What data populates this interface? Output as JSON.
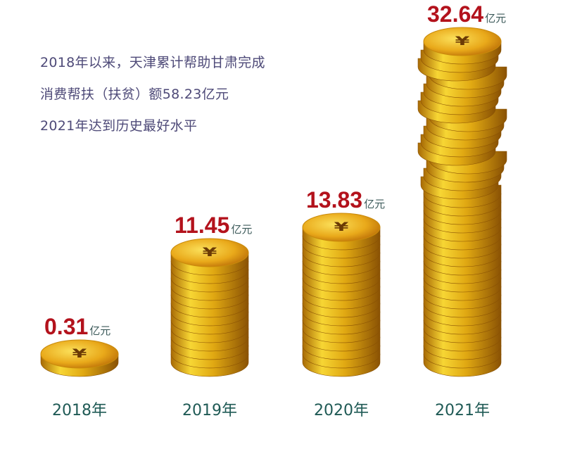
{
  "intro": [
    "2018年以来，天津累计帮助甘肃完成",
    "消费帮扶（扶贫）额58.23亿元",
    "2021年达到历史最好水平"
  ],
  "chart_data": {
    "type": "bar",
    "mark": "coin-stack",
    "categories": [
      "2018年",
      "2019年",
      "2020年",
      "2021年"
    ],
    "values": [
      0.31,
      11.45,
      13.83,
      32.64
    ],
    "value_labels": [
      "0.31",
      "11.45",
      "13.83",
      "32.64"
    ],
    "unit": "亿元",
    "title": "",
    "xlabel": "",
    "ylabel": "",
    "grid": false,
    "colors": {
      "value": "#b3121c",
      "year": "#1f5a55",
      "coin": "#f2c21a",
      "intro": "#4e4a78"
    }
  }
}
